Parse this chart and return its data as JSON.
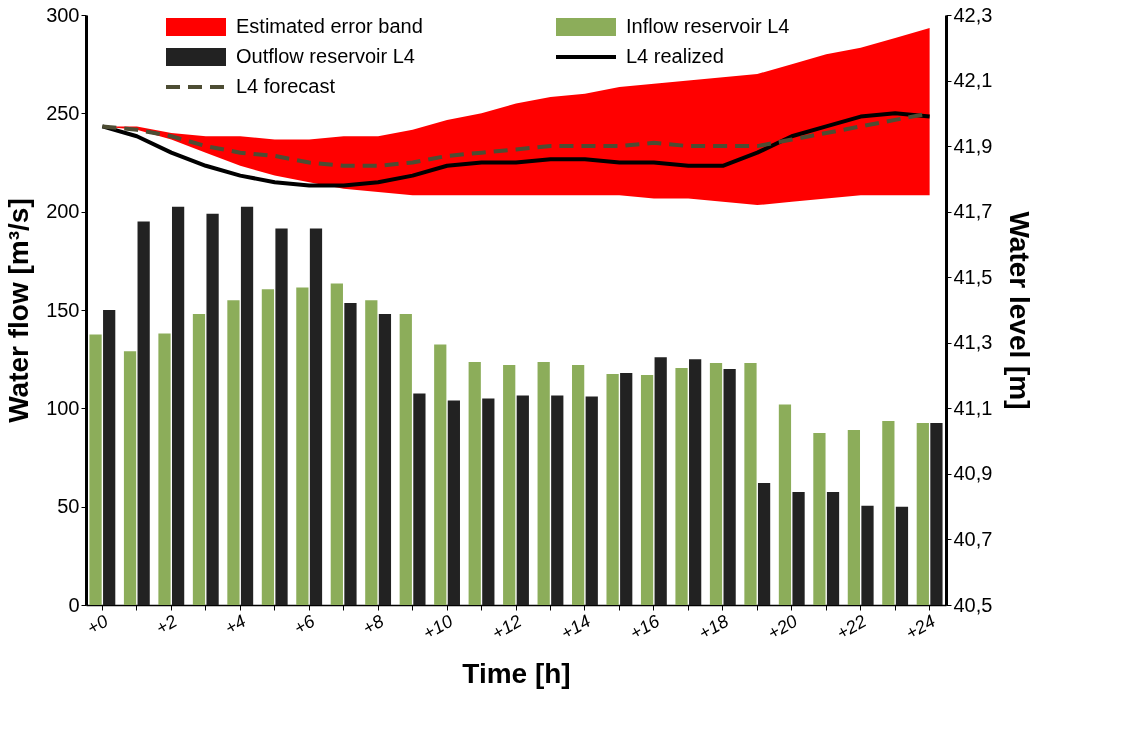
{
  "chart_data": {
    "type": "bar",
    "xlabel": "Time [h]",
    "ylabel": "Water flow [m³/s]",
    "y2label": "Water level [m]",
    "categories": [
      "+0",
      null,
      "+2",
      null,
      "+4",
      null,
      "+6",
      null,
      "+8",
      null,
      "+10",
      null,
      "+12",
      null,
      "+14",
      null,
      "+16",
      null,
      "+18",
      null,
      "+20",
      null,
      "+22",
      null,
      "+24"
    ],
    "ylim": [
      0,
      300
    ],
    "yticks": [
      0,
      50,
      100,
      150,
      200,
      250,
      300
    ],
    "y2lim": [
      40.5,
      42.3
    ],
    "y2ticks": [
      {
        "value": 40.5,
        "label": "40,5"
      },
      {
        "value": 40.7,
        "label": "40,7"
      },
      {
        "value": 40.9,
        "label": "40,9"
      },
      {
        "value": 41.1,
        "label": "41,1"
      },
      {
        "value": 41.3,
        "label": "41,3"
      },
      {
        "value": 41.5,
        "label": "41,5"
      },
      {
        "value": 41.7,
        "label": "41,7"
      },
      {
        "value": 41.9,
        "label": "41,9"
      },
      {
        "value": 42.1,
        "label": "42,1"
      },
      {
        "value": 42.3,
        "label": "42,3"
      }
    ],
    "grid": false,
    "legend": "top",
    "series": [
      {
        "name": "Estimated error band",
        "type": "area",
        "axis": "y2",
        "color": "#ff0000",
        "values": [
          null,
          null,
          null,
          null,
          null,
          null,
          null,
          null,
          null,
          null,
          null,
          null,
          null,
          null,
          null,
          null,
          null,
          null,
          null,
          null,
          null,
          null,
          null,
          null,
          null
        ],
        "lower": [
          41.96,
          41.95,
          41.92,
          41.88,
          41.84,
          41.81,
          41.79,
          41.77,
          41.76,
          41.75,
          41.75,
          41.75,
          41.75,
          41.75,
          41.75,
          41.75,
          41.74,
          41.74,
          41.73,
          41.72,
          41.73,
          41.74,
          41.75,
          41.75,
          41.75
        ],
        "upper": [
          41.96,
          41.96,
          41.94,
          41.93,
          41.93,
          41.92,
          41.92,
          41.93,
          41.93,
          41.95,
          41.98,
          42.0,
          42.03,
          42.05,
          42.06,
          42.08,
          42.09,
          42.1,
          42.11,
          42.12,
          42.15,
          42.18,
          42.2,
          42.23,
          42.26
        ]
      },
      {
        "name": "Inflow reservoir L4",
        "color": "#8cad5a",
        "values": [
          137.5,
          129,
          138,
          148,
          155,
          160.5,
          161.5,
          163.5,
          155,
          148,
          132.5,
          123.5,
          122,
          123.5,
          122,
          117.5,
          117,
          120.5,
          123,
          123,
          102,
          87.5,
          89,
          93.5,
          92.5
        ]
      },
      {
        "name": "Outflow reservoir L4",
        "color": "#222222",
        "values": [
          150,
          195,
          202.5,
          199,
          202.5,
          191.5,
          191.5,
          153.5,
          148,
          107.5,
          104,
          105,
          106.5,
          106.5,
          106,
          118,
          126,
          125,
          120,
          62,
          57.5,
          57.5,
          50.5,
          50,
          92.5
        ]
      },
      {
        "name": "L4 realized",
        "type": "line",
        "axis": "y2",
        "color": "#000000",
        "line_style": "solid",
        "values": [
          41.96,
          41.93,
          41.88,
          41.84,
          41.81,
          41.79,
          41.78,
          41.78,
          41.79,
          41.81,
          41.84,
          41.85,
          41.85,
          41.86,
          41.86,
          41.85,
          41.85,
          41.84,
          41.84,
          41.88,
          41.93,
          41.96,
          41.99,
          42.0,
          41.99
        ]
      },
      {
        "name": "L4 forecast",
        "type": "line",
        "axis": "y2",
        "color": "#4d4d33",
        "line_style": "dashed",
        "values": [
          41.96,
          41.95,
          41.93,
          41.9,
          41.88,
          41.87,
          41.85,
          41.84,
          41.84,
          41.85,
          41.87,
          41.88,
          41.89,
          41.9,
          41.9,
          41.9,
          41.91,
          41.9,
          41.9,
          41.9,
          41.92,
          41.94,
          41.96,
          41.98,
          42.0
        ]
      }
    ]
  }
}
